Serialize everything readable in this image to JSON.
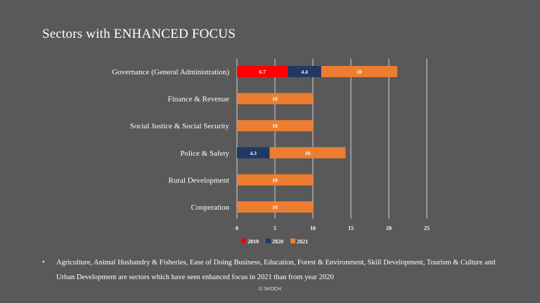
{
  "slide": {
    "title": "Sectors with ENHANCED FOCUS",
    "bullet_symbol": "•",
    "bullet_text": "Agriculture, Animal Husbandry & Fisheries, Ease of Doing Business, Education, Forest & Environment, Skill Development, Tourism & Culture and Urban Development are sectors which have seen enhanced focus in 2021 than from year 2020",
    "footer": "© SKOCH"
  },
  "chart_data": {
    "type": "bar",
    "orientation": "horizontal",
    "stacked": true,
    "categories": [
      "Governance (General Administration)",
      "Finance & Revenue",
      "Social Justice & Social Security",
      "Police & Safety",
      "Rural Development",
      "Cooperation"
    ],
    "series": [
      {
        "name": "2019",
        "color": "#ff0000",
        "values": [
          6.7,
          null,
          null,
          null,
          null,
          null
        ]
      },
      {
        "name": "2020",
        "color": "#203864",
        "values": [
          4.4,
          null,
          null,
          4.3,
          null,
          null
        ]
      },
      {
        "name": "2021",
        "color": "#ed7d31",
        "values": [
          10,
          10,
          10,
          10,
          10,
          10
        ]
      }
    ],
    "x_ticks": [
      "0",
      "5",
      "10",
      "15",
      "20",
      "25"
    ],
    "xlim": [
      0,
      25
    ],
    "grid": true,
    "legend_position": "bottom",
    "xlabel": "",
    "ylabel": ""
  }
}
